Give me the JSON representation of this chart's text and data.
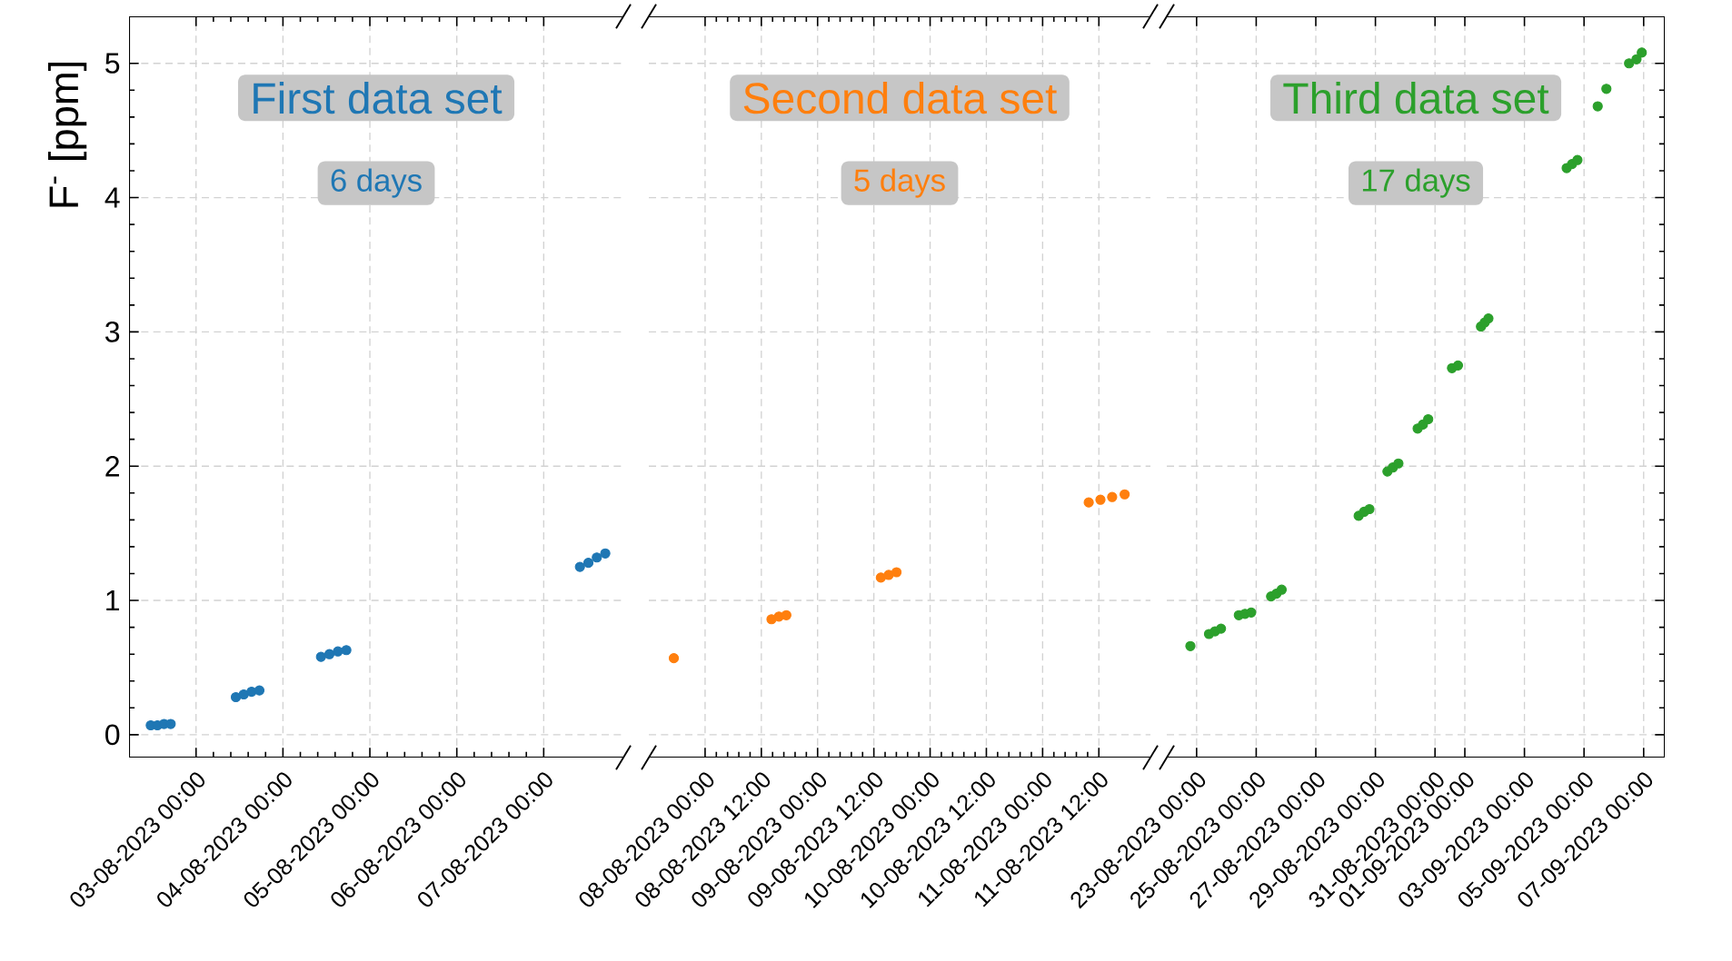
{
  "chart_data": [
    {
      "type": "scatter",
      "ylabel": "F$^{-}$ [ppm]",
      "grid": true,
      "xlim": [
        "2023-08-02T05:30",
        "2023-08-07T22:00"
      ],
      "ylim": [
        -0.17,
        5.35
      ],
      "yticks": [
        0,
        1,
        2,
        3,
        4,
        5
      ],
      "xticks": [
        {
          "value": "2023-08-03T00:00",
          "label": "03-08-2023 00:00"
        },
        {
          "value": "2023-08-04T00:00",
          "label": "04-08-2023 00:00"
        },
        {
          "value": "2023-08-05T00:00",
          "label": "05-08-2023 00:00"
        },
        {
          "value": "2023-08-06T00:00",
          "label": "06-08-2023 00:00"
        },
        {
          "value": "2023-08-07T00:00",
          "label": "07-08-2023 00:00"
        }
      ],
      "annotations": [
        "First data set",
        "6 days"
      ],
      "series": [
        {
          "color": "#1f77b4",
          "x": [
            "2023-08-02T11:30",
            "2023-08-02T13:20",
            "2023-08-02T15:10",
            "2023-08-02T17:00",
            "2023-08-03T11:00",
            "2023-08-03T13:10",
            "2023-08-03T15:20",
            "2023-08-03T17:30",
            "2023-08-04T10:30",
            "2023-08-04T12:50",
            "2023-08-04T15:10",
            "2023-08-04T17:30",
            "2023-08-07T10:00",
            "2023-08-07T12:20",
            "2023-08-07T14:40",
            "2023-08-07T17:00"
          ],
          "values": [
            0.07,
            0.07,
            0.08,
            0.08,
            0.28,
            0.3,
            0.32,
            0.33,
            0.58,
            0.6,
            0.62,
            0.63,
            1.25,
            1.28,
            1.32,
            1.35
          ]
        }
      ]
    },
    {
      "type": "scatter",
      "grid": true,
      "tick_labels": "x",
      "xlim": [
        "2023-08-07T12:00",
        "2023-08-11T23:00"
      ],
      "ylim": [
        -0.17,
        5.35
      ],
      "yticks": [
        0,
        1,
        2,
        3,
        4,
        5
      ],
      "xticks": [
        {
          "value": "2023-08-08T00:00",
          "label": "08-08-2023 00:00"
        },
        {
          "value": "2023-08-08T12:00",
          "label": "08-08-2023 12:00"
        },
        {
          "value": "2023-08-09T00:00",
          "label": "09-08-2023 00:00"
        },
        {
          "value": "2023-08-09T12:00",
          "label": "09-08-2023 12:00"
        },
        {
          "value": "2023-08-10T00:00",
          "label": "10-08-2023 00:00"
        },
        {
          "value": "2023-08-10T12:00",
          "label": "10-08-2023 12:00"
        },
        {
          "value": "2023-08-11T00:00",
          "label": "11-08-2023 00:00"
        },
        {
          "value": "2023-08-11T12:00",
          "label": "11-08-2023 12:00"
        }
      ],
      "annotations": [
        "Second data set",
        "5 days"
      ],
      "series": [
        {
          "color": "#ff7f0e",
          "x": [
            "2023-08-07T17:20",
            "2023-08-08T14:10",
            "2023-08-08T15:45",
            "2023-08-08T17:20",
            "2023-08-09T13:30",
            "2023-08-09T15:10",
            "2023-08-09T16:50",
            "2023-08-11T09:50",
            "2023-08-11T12:20",
            "2023-08-11T14:50",
            "2023-08-11T17:30"
          ],
          "values": [
            0.57,
            0.86,
            0.88,
            0.89,
            1.17,
            1.19,
            1.21,
            1.73,
            1.75,
            1.77,
            1.79
          ]
        }
      ]
    },
    {
      "type": "scatter",
      "grid": true,
      "tick_labels": "x",
      "xlim": [
        "2023-08-22T00:00",
        "2023-09-07T17:00"
      ],
      "ylim": [
        -0.17,
        5.35
      ],
      "yticks": [
        0,
        1,
        2,
        3,
        4,
        5
      ],
      "xticks": [
        {
          "value": "2023-08-23T00:00",
          "label": "23-08-2023 00:00"
        },
        {
          "value": "2023-08-25T00:00",
          "label": "25-08-2023 00:00"
        },
        {
          "value": "2023-08-27T00:00",
          "label": "27-08-2023 00:00"
        },
        {
          "value": "2023-08-29T00:00",
          "label": "29-08-2023 00:00"
        },
        {
          "value": "2023-08-31T00:00",
          "label": "31-08-2023 00:00"
        },
        {
          "value": "2023-09-01T00:00",
          "label": "01-09-2023 00:00"
        },
        {
          "value": "2023-09-03T00:00",
          "label": "03-09-2023 00:00"
        },
        {
          "value": "2023-09-05T00:00",
          "label": "05-09-2023 00:00"
        },
        {
          "value": "2023-09-07T00:00",
          "label": "07-09-2023 00:00"
        }
      ],
      "annotations": [
        "Third data set",
        "17 days"
      ],
      "series": [
        {
          "color": "#2ca02c",
          "x": [
            "2023-08-22T19:00",
            "2023-08-23T10:00",
            "2023-08-23T14:50",
            "2023-08-23T19:40",
            "2023-08-24T10:00",
            "2023-08-24T15:00",
            "2023-08-24T20:00",
            "2023-08-25T12:00",
            "2023-08-25T16:15",
            "2023-08-25T20:30",
            "2023-08-28T10:30",
            "2023-08-28T14:50",
            "2023-08-28T19:10",
            "2023-08-29T09:40",
            "2023-08-29T14:00",
            "2023-08-29T18:30",
            "2023-08-30T10:00",
            "2023-08-30T14:15",
            "2023-08-30T18:30",
            "2023-08-31T13:40",
            "2023-08-31T18:30",
            "2023-09-01T13:00",
            "2023-09-01T16:00",
            "2023-09-01T19:00",
            "2023-09-04T10:00",
            "2023-09-04T14:20",
            "2023-09-04T18:40",
            "2023-09-05T11:00",
            "2023-09-05T18:00",
            "2023-09-06T12:15",
            "2023-09-06T18:15",
            "2023-09-06T22:30"
          ],
          "values": [
            0.66,
            0.75,
            0.77,
            0.79,
            0.89,
            0.9,
            0.91,
            1.03,
            1.05,
            1.08,
            1.63,
            1.66,
            1.68,
            1.96,
            1.99,
            2.02,
            2.28,
            2.31,
            2.35,
            2.73,
            2.75,
            3.04,
            3.07,
            3.1,
            4.22,
            4.25,
            4.28,
            4.68,
            4.81,
            5.0,
            5.03,
            5.08
          ]
        }
      ]
    }
  ]
}
